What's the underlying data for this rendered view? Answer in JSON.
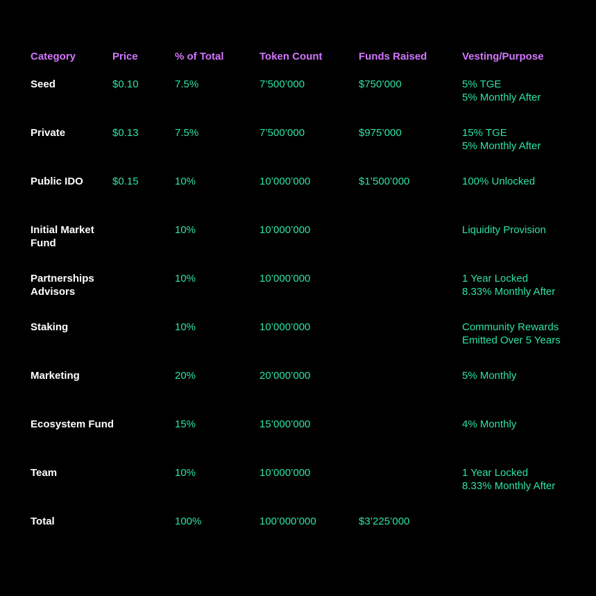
{
  "colors": {
    "background": "#000000",
    "header": "#d276ff",
    "category": "#ffffff",
    "value": "#2de3a6"
  },
  "headers": [
    "Category",
    "Price",
    "% of Total",
    "Token Count",
    "Funds Raised",
    "Vesting/Purpose"
  ],
  "rows": [
    {
      "category": [
        "Seed"
      ],
      "price": "$0.10",
      "percent": "7.5%",
      "tokens": "7’500’000",
      "funds": "$750’000",
      "vesting": [
        "5% TGE",
        "5% Monthly After"
      ]
    },
    {
      "category": [
        "Private"
      ],
      "price": "$0.13",
      "percent": "7.5%",
      "tokens": "7’500’000",
      "funds": "$975’000",
      "vesting": [
        "15% TGE",
        "5% Monthly After"
      ]
    },
    {
      "category": [
        "Public IDO"
      ],
      "price": "$0.15",
      "percent": "10%",
      "tokens": "10’000’000",
      "funds": "$1’500’000",
      "vesting": [
        "100% Unlocked"
      ]
    },
    {
      "category": [
        "Initial Market",
        "Fund"
      ],
      "price": "",
      "percent": "10%",
      "tokens": "10’000’000",
      "funds": "",
      "vesting": [
        "Liquidity Provision"
      ]
    },
    {
      "category": [
        "Partnerships",
        "Advisors"
      ],
      "price": "",
      "percent": "10%",
      "tokens": "10’000’000",
      "funds": "",
      "vesting": [
        "1 Year Locked",
        "8.33% Monthly After"
      ]
    },
    {
      "category": [
        "Staking"
      ],
      "price": "",
      "percent": "10%",
      "tokens": "10’000’000",
      "funds": "",
      "vesting": [
        "Community Rewards",
        "Emitted Over 5 Years"
      ]
    },
    {
      "category": [
        "Marketing"
      ],
      "price": "",
      "percent": "20%",
      "tokens": "20’000’000",
      "funds": "",
      "vesting": [
        "5% Monthly"
      ]
    },
    {
      "category": [
        "Ecosystem Fund"
      ],
      "price": "",
      "percent": "15%",
      "tokens": "15’000’000",
      "funds": "",
      "vesting": [
        "4% Monthly"
      ]
    },
    {
      "category": [
        "Team"
      ],
      "price": "",
      "percent": "10%",
      "tokens": "10’000’000",
      "funds": "",
      "vesting": [
        "1 Year Locked",
        "8.33% Monthly After"
      ]
    },
    {
      "category": [
        "Total"
      ],
      "price": "",
      "percent": "100%",
      "tokens": "100’000’000",
      "funds": "$3’225’000",
      "vesting": []
    }
  ]
}
